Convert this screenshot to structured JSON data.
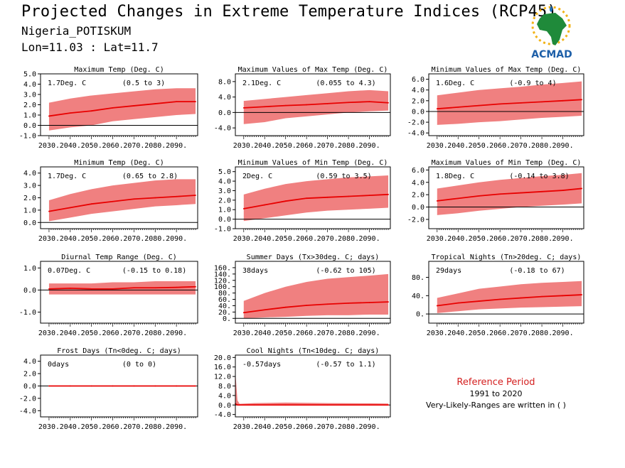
{
  "header": {
    "title": "Projected Changes in Extreme Temperature Indices (RCP45)",
    "station": "Nigeria_POTISKUM",
    "coords": "Lon=11.03 : Lat=11.7"
  },
  "logo": {
    "text": "ACMAD",
    "icon": "africa-map-sun-logo"
  },
  "reference": {
    "title": "Reference Period",
    "years": "1991 to 2020",
    "note": "Very-Likely-Ranges are written in ( )"
  },
  "colors": {
    "line": "#e80000",
    "band": "#f08080",
    "axis": "#000000",
    "title": "#d42020"
  },
  "chart_data": [
    {
      "type": "line",
      "title": "Maximum Temp (Deg. C)",
      "mean_label": "1.7Deg. C",
      "range_label": "(0.5 to 3)",
      "xlim": [
        2026,
        2100
      ],
      "ylim": [
        -1,
        5
      ],
      "yticks": [
        -1,
        0,
        1,
        2,
        3,
        4,
        5
      ],
      "ytick_labels": [
        "-1.0",
        "0.0",
        "1.0",
        "2.0",
        "3.0",
        "4.0",
        "5.0"
      ],
      "x": [
        2030,
        2040,
        2050,
        2060,
        2070,
        2080,
        2090,
        2099
      ],
      "series": [
        {
          "values": [
            0.9,
            1.2,
            1.4,
            1.7,
            1.9,
            2.1,
            2.3,
            2.3
          ]
        }
      ],
      "band": {
        "lower": [
          -0.5,
          -0.2,
          0.0,
          0.4,
          0.6,
          0.8,
          1.0,
          1.1
        ],
        "upper": [
          2.2,
          2.6,
          2.9,
          3.1,
          3.3,
          3.5,
          3.6,
          3.6
        ]
      }
    },
    {
      "type": "line",
      "title": "Maximum Values of Max Temp (Deg. C)",
      "mean_label": "2.1Deg. C",
      "range_label": "(0.055 to 4.3)",
      "xlim": [
        2026,
        2100
      ],
      "ylim": [
        -6,
        10
      ],
      "yticks": [
        -4,
        0,
        4,
        8
      ],
      "ytick_labels": [
        "-4.0",
        "0.0",
        "4.0",
        "8.0"
      ],
      "x": [
        2030,
        2040,
        2050,
        2060,
        2070,
        2080,
        2090,
        2099
      ],
      "series": [
        {
          "values": [
            1.2,
            1.5,
            1.8,
            2.0,
            2.3,
            2.6,
            2.8,
            2.5
          ]
        }
      ],
      "band": {
        "lower": [
          -3.0,
          -2.5,
          -1.5,
          -1.0,
          -0.5,
          0.0,
          0.3,
          0.5
        ],
        "upper": [
          3.0,
          3.5,
          4.0,
          4.5,
          5.0,
          5.5,
          5.8,
          5.5
        ]
      }
    },
    {
      "type": "line",
      "title": "Minimum Values of Max Temp (Deg. C)",
      "mean_label": "1.6Deg. C",
      "range_label": "(-0.9 to 4)",
      "xlim": [
        2026,
        2100
      ],
      "ylim": [
        -4.5,
        7
      ],
      "yticks": [
        -4,
        -2,
        0,
        2,
        4,
        6
      ],
      "ytick_labels": [
        "-4.0",
        "-2.0",
        "0.0",
        "2.0",
        "4.0",
        "6.0"
      ],
      "x": [
        2030,
        2040,
        2050,
        2060,
        2070,
        2080,
        2090,
        2099
      ],
      "series": [
        {
          "values": [
            0.5,
            0.8,
            1.1,
            1.4,
            1.6,
            1.8,
            2.0,
            2.2
          ]
        }
      ],
      "band": {
        "lower": [
          -2.5,
          -2.3,
          -2.0,
          -1.8,
          -1.5,
          -1.2,
          -1.0,
          -0.8
        ],
        "upper": [
          3.0,
          3.5,
          4.0,
          4.3,
          4.6,
          5.0,
          5.3,
          5.6
        ]
      }
    },
    {
      "type": "line",
      "title": "Minimum Temp (Deg. C)",
      "mean_label": "1.7Deg. C",
      "range_label": "(0.65 to 2.8)",
      "xlim": [
        2026,
        2100
      ],
      "ylim": [
        -0.5,
        4.5
      ],
      "yticks": [
        0,
        1,
        2,
        3,
        4
      ],
      "ytick_labels": [
        "0.0",
        "1.0",
        "2.0",
        "3.0",
        "4.0"
      ],
      "x": [
        2030,
        2040,
        2050,
        2060,
        2070,
        2080,
        2090,
        2099
      ],
      "series": [
        {
          "values": [
            0.9,
            1.2,
            1.5,
            1.7,
            1.9,
            2.0,
            2.1,
            2.2
          ]
        }
      ],
      "band": {
        "lower": [
          0.1,
          0.4,
          0.7,
          0.9,
          1.1,
          1.3,
          1.4,
          1.5
        ],
        "upper": [
          1.8,
          2.3,
          2.7,
          3.0,
          3.2,
          3.4,
          3.5,
          3.5
        ]
      }
    },
    {
      "type": "line",
      "title": "Minimum Values of Min Temp (Deg. C)",
      "mean_label": "2Deg. C",
      "range_label": "(0.59 to 3.5)",
      "xlim": [
        2026,
        2100
      ],
      "ylim": [
        -1,
        5.5
      ],
      "yticks": [
        -1,
        0,
        1,
        2,
        3,
        4,
        5
      ],
      "ytick_labels": [
        "-1.0",
        "0.0",
        "1.0",
        "2.0",
        "3.0",
        "4.0",
        "5.0"
      ],
      "x": [
        2030,
        2040,
        2050,
        2060,
        2070,
        2080,
        2090,
        2099
      ],
      "series": [
        {
          "values": [
            1.1,
            1.5,
            1.9,
            2.2,
            2.3,
            2.4,
            2.5,
            2.6
          ]
        }
      ],
      "band": {
        "lower": [
          -0.2,
          0.1,
          0.4,
          0.7,
          0.9,
          1.0,
          1.1,
          1.2
        ],
        "upper": [
          2.6,
          3.2,
          3.7,
          4.0,
          4.2,
          4.4,
          4.5,
          4.6
        ]
      }
    },
    {
      "type": "line",
      "title": "Maximum Values of Min Temp (Deg. C)",
      "mean_label": "1.8Deg. C",
      "range_label": "(-0.14 to 3.8)",
      "xlim": [
        2026,
        2100
      ],
      "ylim": [
        -3.5,
        6.5
      ],
      "yticks": [
        -2,
        0,
        2,
        4,
        6
      ],
      "ytick_labels": [
        "-2.0",
        "0.0",
        "2.0",
        "4.0",
        "6.0"
      ],
      "x": [
        2030,
        2040,
        2050,
        2060,
        2070,
        2080,
        2090,
        2099
      ],
      "series": [
        {
          "values": [
            1.0,
            1.4,
            1.8,
            2.1,
            2.3,
            2.5,
            2.7,
            3.0
          ]
        }
      ],
      "band": {
        "lower": [
          -1.3,
          -1.0,
          -0.6,
          -0.3,
          0.0,
          0.2,
          0.4,
          0.6
        ],
        "upper": [
          3.0,
          3.5,
          4.0,
          4.4,
          4.7,
          5.0,
          5.2,
          5.5
        ]
      }
    },
    {
      "type": "line",
      "title": "Diurnal Temp Range (Deg. C)",
      "mean_label": "0.07Deg. C",
      "range_label": "(-0.15 to 0.18)",
      "xlim": [
        2026,
        2100
      ],
      "ylim": [
        -1.5,
        1.3
      ],
      "yticks": [
        -1,
        0,
        1
      ],
      "ytick_labels": [
        "-1.0",
        "0.0",
        "1.0"
      ],
      "x": [
        2030,
        2040,
        2050,
        2060,
        2070,
        2080,
        2090,
        2099
      ],
      "series": [
        {
          "values": [
            0.05,
            0.08,
            0.05,
            0.05,
            0.1,
            0.1,
            0.12,
            0.15
          ]
        }
      ],
      "band": {
        "lower": [
          -0.2,
          -0.2,
          -0.2,
          -0.2,
          -0.2,
          -0.2,
          -0.2,
          -0.2
        ],
        "upper": [
          0.3,
          0.3,
          0.3,
          0.35,
          0.35,
          0.4,
          0.4,
          0.4
        ]
      }
    },
    {
      "type": "line",
      "title": "Summer Days (Tx>30deg. C; days)",
      "mean_label": "38days",
      "range_label": "(-0.62 to 105)",
      "xlim": [
        2026,
        2100
      ],
      "ylim": [
        -15,
        180
      ],
      "yticks": [
        0,
        20,
        40,
        60,
        80,
        100,
        120,
        140,
        160
      ],
      "ytick_labels": [
        "0.",
        "20.",
        "40.",
        "60.",
        "80.",
        "100.",
        "120.",
        "140.",
        "160."
      ],
      "x": [
        2030,
        2040,
        2050,
        2060,
        2070,
        2080,
        2090,
        2099
      ],
      "series": [
        {
          "values": [
            18,
            27,
            35,
            41,
            45,
            48,
            50,
            52
          ]
        }
      ],
      "band": {
        "lower": [
          0,
          3,
          5,
          8,
          10,
          10,
          12,
          12
        ],
        "upper": [
          55,
          80,
          100,
          115,
          125,
          130,
          135,
          140
        ]
      }
    },
    {
      "type": "line",
      "title": "Tropical Nights (Tn>20deg. C; days)",
      "mean_label": "29days",
      "range_label": "(-0.18 to 67)",
      "xlim": [
        2026,
        2100
      ],
      "ylim": [
        -20,
        115
      ],
      "yticks": [
        0,
        40,
        80
      ],
      "ytick_labels": [
        "0.",
        "40.",
        "80."
      ],
      "x": [
        2030,
        2040,
        2050,
        2060,
        2070,
        2080,
        2090,
        2099
      ],
      "series": [
        {
          "values": [
            18,
            24,
            28,
            32,
            35,
            38,
            40,
            42
          ]
        }
      ],
      "band": {
        "lower": [
          2,
          6,
          10,
          12,
          14,
          15,
          16,
          17
        ],
        "upper": [
          35,
          45,
          55,
          60,
          65,
          68,
          70,
          72
        ]
      }
    },
    {
      "type": "line",
      "title": "Frost Days (Tn<0deg. C; days)",
      "mean_label": "0days",
      "range_label": "(0 to 0)",
      "xlim": [
        2026,
        2100
      ],
      "ylim": [
        -5,
        5
      ],
      "yticks": [
        -4,
        -2,
        0,
        2,
        4
      ],
      "ytick_labels": [
        "-4.0",
        "-2.0",
        "0.0",
        "2.0",
        "4.0"
      ],
      "x": [
        2030,
        2040,
        2050,
        2060,
        2070,
        2080,
        2090,
        2099
      ],
      "series": [
        {
          "values": [
            0,
            0,
            0,
            0,
            0,
            0,
            0,
            0
          ]
        }
      ],
      "band": {
        "lower": [
          0,
          0,
          0,
          0,
          0,
          0,
          0,
          0
        ],
        "upper": [
          0,
          0,
          0,
          0,
          0,
          0,
          0,
          0
        ]
      }
    },
    {
      "type": "line",
      "title": "Cool Nights (Tn<10deg. C; days)",
      "mean_label": "-0.57days",
      "range_label": "(-0.57 to 1.1)",
      "xlim": [
        2026,
        2100
      ],
      "ylim": [
        -5,
        21
      ],
      "yticks": [
        -4,
        0,
        4,
        8,
        12,
        16,
        20
      ],
      "ytick_labels": [
        "-4.0",
        "0.0",
        "4.0",
        "8.0",
        "12.0",
        "16.0",
        "20.0"
      ],
      "x": [
        2026,
        2027,
        2028,
        2035,
        2050,
        2070,
        2090,
        2099
      ],
      "series": [
        {
          "values": [
            0.5,
            0.0,
            0.0,
            0.0,
            0.0,
            0.0,
            0.0,
            0.0
          ]
        }
      ],
      "band": {
        "lower": [
          0,
          0,
          0,
          0,
          0,
          0,
          0,
          0
        ],
        "upper": [
          14.0,
          2.0,
          0.5,
          0.8,
          1.0,
          0.8,
          0.7,
          0.6
        ]
      }
    }
  ],
  "x_tick_labels": [
    "2030.",
    "2040.",
    "2050.",
    "2060.",
    "2070.",
    "2080.",
    "2090."
  ],
  "x_tick_values": [
    2030,
    2040,
    2050,
    2060,
    2070,
    2080,
    2090
  ]
}
